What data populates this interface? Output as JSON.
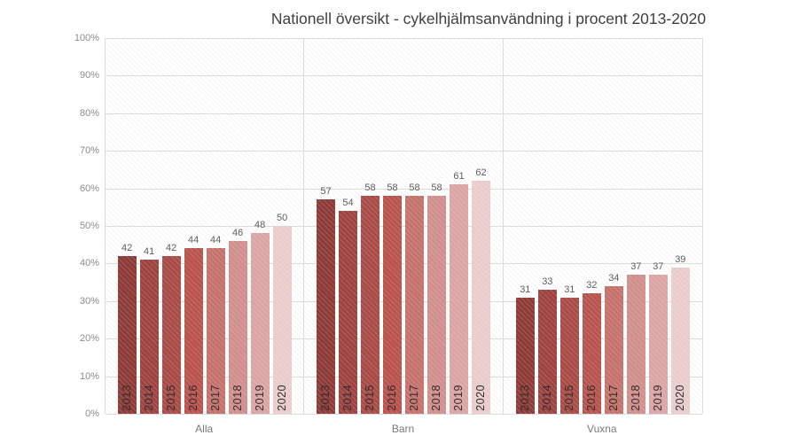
{
  "chart_data": {
    "type": "bar",
    "title": "Nationell översikt - cykelhjälmsanvändning i procent 2013-2020",
    "categories": [
      "Alla",
      "Barn",
      "Vuxna"
    ],
    "years": [
      "2013",
      "2014",
      "2015",
      "2016",
      "2017",
      "2018",
      "2019",
      "2020"
    ],
    "series": [
      {
        "name": "Alla",
        "values": [
          42,
          41,
          42,
          44,
          44,
          46,
          48,
          50
        ]
      },
      {
        "name": "Barn",
        "values": [
          57,
          54,
          58,
          58,
          58,
          58,
          61,
          62
        ]
      },
      {
        "name": "Vuxna",
        "values": [
          31,
          33,
          31,
          32,
          34,
          37,
          37,
          39
        ]
      }
    ],
    "ylim": [
      0,
      100
    ],
    "yticks": [
      "0%",
      "10%",
      "20%",
      "30%",
      "40%",
      "50%",
      "60%",
      "70%",
      "80%",
      "90%",
      "100%"
    ],
    "grid": "horizontal",
    "legend": "none",
    "bar_colors": [
      "#8e3b38",
      "#9d4340",
      "#a94b46",
      "#b8534d",
      "#c5726c",
      "#d18f8b",
      "#daa5a3",
      "#e9cccb"
    ],
    "gridline_color": "#dcdcdc",
    "value_label_color": "#5f5f5f",
    "year_label_color": "#2f2f2f",
    "axis_label_color": "#8c8c8c"
  }
}
